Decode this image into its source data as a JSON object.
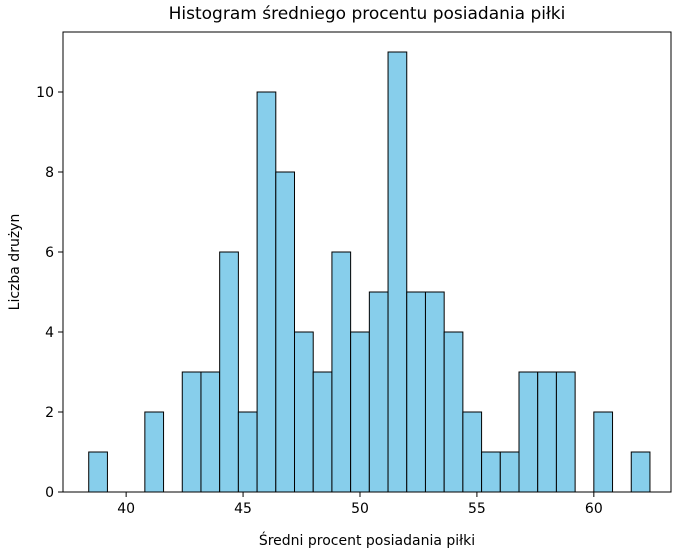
{
  "chart_data": {
    "type": "bar",
    "title": "Histogram średniego procentu posiadania piłki",
    "xlabel": "Średni procent posiadania piłki",
    "ylabel": "Liczba drużyn",
    "xlim": [
      37.3,
      63.3
    ],
    "ylim": [
      0,
      11.5
    ],
    "xticks": [
      40,
      45,
      50,
      55,
      60
    ],
    "yticks": [
      0,
      2,
      4,
      6,
      8,
      10
    ],
    "bar_color": "#87ceeb",
    "edge_color": "#000000",
    "bin_start": 38.4,
    "bin_width": 0.8,
    "counts": [
      1,
      0,
      0,
      2,
      0,
      3,
      3,
      6,
      2,
      10,
      8,
      4,
      3,
      6,
      4,
      5,
      11,
      5,
      5,
      4,
      2,
      1,
      1,
      3,
      3,
      3,
      0,
      2,
      0,
      1
    ]
  }
}
